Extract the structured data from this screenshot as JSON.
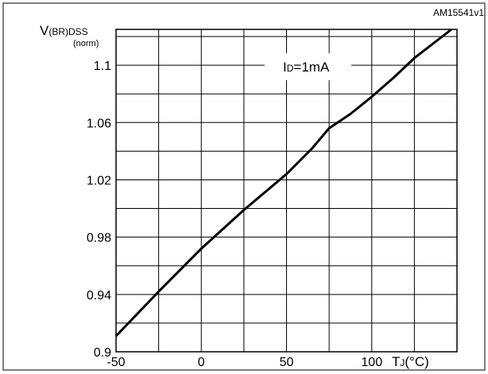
{
  "figure_code": "AM15541v1",
  "chart_data": {
    "type": "line",
    "ylabel": {
      "main": "V",
      "sub": "(BR)DSS",
      "unit": "(norm)"
    },
    "xlabel": {
      "main": "T",
      "sub": "J",
      "unit": "(°C)"
    },
    "annotation": {
      "main": "I",
      "sub": "D",
      "rest": "=1mA"
    },
    "xlim": [
      -50,
      150
    ],
    "ylim": [
      0.9,
      1.125
    ],
    "x_ticks": [
      -50,
      0,
      50,
      100
    ],
    "x_tick_labels": [
      "-50",
      "0",
      "50",
      "100"
    ],
    "y_ticks": [
      0.9,
      0.94,
      0.98,
      1.02,
      1.06,
      1.1
    ],
    "y_tick_labels": [
      "0.9",
      "0.94",
      "0.98",
      "1.02",
      "1.06",
      "1.1"
    ],
    "grid": true,
    "series": [
      {
        "x": [
          -50,
          -25,
          0,
          25,
          50,
          65,
          75,
          87.5,
          100,
          112.5,
          125,
          150
        ],
        "y": [
          0.911,
          0.942,
          0.972,
          0.999,
          1.024,
          1.042,
          1.056,
          1.066,
          1.078,
          1.091,
          1.105,
          1.128
        ]
      }
    ]
  }
}
